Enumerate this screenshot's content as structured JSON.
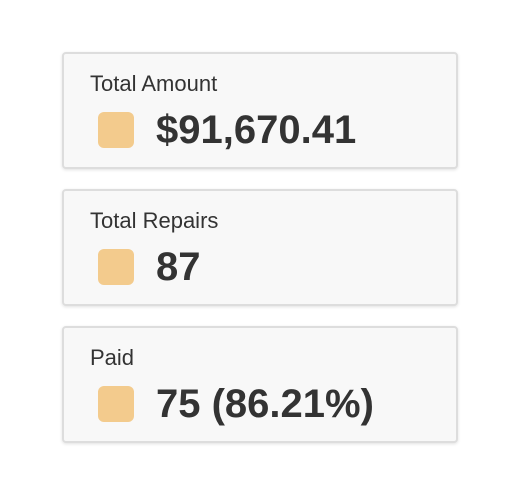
{
  "cards": [
    {
      "label": "Total Amount",
      "value": "$91,670.41"
    },
    {
      "label": "Total Repairs",
      "value": "87"
    },
    {
      "label": "Paid",
      "value": "75 (86.21%)"
    }
  ]
}
